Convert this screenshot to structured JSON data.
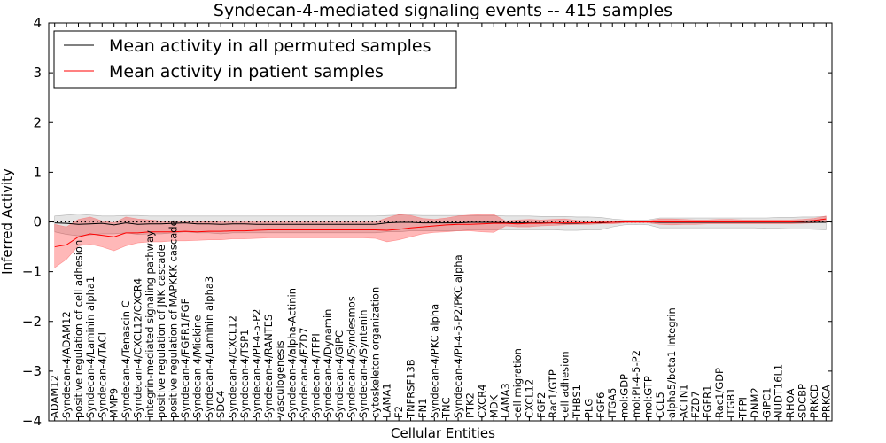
{
  "chart_data": {
    "type": "line",
    "title": "Syndecan-4-mediated signaling events -- 415 samples",
    "xlabel": "Cellular Entities",
    "ylabel": "Inferred Activity",
    "ylim": [
      -4,
      4
    ],
    "yticks": [
      "4",
      "3",
      "2",
      "1",
      "0",
      "−1",
      "−2",
      "−3",
      "−4"
    ],
    "legend_position": "top-left",
    "categories": [
      "ADAM12",
      "Syndecan-4/ADAM12",
      "positive regulation of cell adhesion",
      "Syndecan-4/Laminin alpha1",
      "Syndecan-4/TACI",
      "MMP9",
      "Syndecan-4/Tenascin C",
      "Syndecan-4/CXCL12/CXCR4",
      "integrin-mediated signaling pathway",
      "positive regulation of JNK cascade",
      "positive regulation of MAPKKK cascade",
      "Syndecan-4/FGFR1/FGF",
      "Syndecan-4/Midkine",
      "Syndecan-4/Laminin alpha3",
      "SDC4",
      "Syndecan-4/CXCL12",
      "Syndecan-4/TSP1",
      "Syndecan-4/PI-4-5-P2",
      "Syndecan-4/RANTES",
      "vasculogenesis",
      "Syndecan-4/alpha-Actinin",
      "Syndecan-4/FZD7",
      "Syndecan-4/TFPI",
      "Syndecan-4/Dynamin",
      "Syndecan-4/GIPC",
      "Syndecan-4/Syndesmos",
      "Syndecan-4/Syntenin",
      "cytoskeleton organization",
      "LAMA1",
      "F2",
      "TNFRSF13B",
      "FN1",
      "Syndecan-4/PKC alpha",
      "TNC",
      "Syndecan-4/PI-4-5-P2/PKC alpha",
      "PTK2",
      "CXCR4",
      "MDK",
      "LAMA3",
      "cell migration",
      "CXCL12",
      "FGF2",
      "Rac1/GTP",
      "cell adhesion",
      "THBS1",
      "PLG",
      "FGF6",
      "ITGA5",
      "mol:GDP",
      "mol:PI-4-5-P2",
      "mol:GTP",
      "CCL5",
      "alpha5/beta1 Integrin",
      "ACTN1",
      "FZD7",
      "FGFR1",
      "Rac1/GDP",
      "ITGB1",
      "TFPI",
      "DNM2",
      "GIPC1",
      "NUDT16L1",
      "RHOA",
      "SDCBP",
      "PRKCD",
      "PRKCA"
    ],
    "series": [
      {
        "name": "Mean activity in all permuted samples",
        "color": "#000000",
        "values": [
          -0.02,
          -0.03,
          -0.05,
          -0.04,
          -0.03,
          -0.06,
          -0.02,
          -0.05,
          -0.04,
          -0.04,
          -0.03,
          -0.02,
          -0.04,
          -0.04,
          -0.05,
          -0.04,
          -0.04,
          -0.05,
          -0.05,
          -0.05,
          -0.05,
          -0.05,
          -0.05,
          -0.05,
          -0.05,
          -0.05,
          -0.05,
          -0.05,
          -0.02,
          -0.01,
          -0.01,
          -0.02,
          -0.02,
          -0.02,
          -0.02,
          -0.01,
          -0.01,
          -0.01,
          -0.02,
          -0.02,
          -0.02,
          -0.02,
          -0.02,
          -0.03,
          -0.03,
          -0.02,
          -0.02,
          -0.01,
          0.0,
          0.0,
          0.0,
          -0.01,
          -0.01,
          -0.01,
          -0.01,
          -0.01,
          -0.01,
          -0.01,
          -0.01,
          -0.01,
          -0.01,
          -0.01,
          -0.01,
          -0.01,
          -0.01,
          -0.01
        ],
        "lower": [
          -0.2,
          -0.25,
          -0.28,
          -0.26,
          -0.24,
          -0.24,
          -0.22,
          -0.25,
          -0.24,
          -0.24,
          -0.22,
          -0.2,
          -0.22,
          -0.22,
          -0.24,
          -0.22,
          -0.22,
          -0.22,
          -0.22,
          -0.22,
          -0.22,
          -0.22,
          -0.22,
          -0.22,
          -0.22,
          -0.22,
          -0.22,
          -0.22,
          -0.2,
          -0.2,
          -0.18,
          -0.18,
          -0.18,
          -0.18,
          -0.18,
          -0.16,
          -0.16,
          -0.16,
          -0.16,
          -0.16,
          -0.16,
          -0.16,
          -0.16,
          -0.17,
          -0.17,
          -0.16,
          -0.16,
          -0.1,
          -0.06,
          -0.05,
          -0.06,
          -0.12,
          -0.12,
          -0.12,
          -0.12,
          -0.12,
          -0.12,
          -0.12,
          -0.12,
          -0.12,
          -0.13,
          -0.13,
          -0.14,
          -0.14,
          -0.15,
          -0.16
        ],
        "upper": [
          0.12,
          0.14,
          0.16,
          0.14,
          0.12,
          0.12,
          0.13,
          0.13,
          0.12,
          0.12,
          0.12,
          0.12,
          0.12,
          0.12,
          0.12,
          0.12,
          0.12,
          0.12,
          0.12,
          0.12,
          0.12,
          0.12,
          0.12,
          0.12,
          0.12,
          0.12,
          0.12,
          0.12,
          0.13,
          0.14,
          0.14,
          0.13,
          0.13,
          0.13,
          0.13,
          0.13,
          0.13,
          0.13,
          0.12,
          0.12,
          0.12,
          0.11,
          0.11,
          0.11,
          0.1,
          0.1,
          0.09,
          0.06,
          0.04,
          0.04,
          0.04,
          0.08,
          0.08,
          0.08,
          0.08,
          0.08,
          0.08,
          0.08,
          0.08,
          0.08,
          0.08,
          0.09,
          0.09,
          0.1,
          0.1,
          0.11
        ]
      },
      {
        "name": "Mean activity in patient samples",
        "color": "#ff0000",
        "values": [
          -0.5,
          -0.46,
          -0.3,
          -0.24,
          -0.27,
          -0.3,
          -0.22,
          -0.22,
          -0.2,
          -0.2,
          -0.2,
          -0.19,
          -0.2,
          -0.19,
          -0.19,
          -0.18,
          -0.18,
          -0.17,
          -0.16,
          -0.16,
          -0.16,
          -0.16,
          -0.16,
          -0.16,
          -0.16,
          -0.16,
          -0.16,
          -0.16,
          -0.17,
          -0.15,
          -0.12,
          -0.1,
          -0.08,
          -0.06,
          -0.05,
          -0.05,
          -0.04,
          -0.03,
          -0.03,
          -0.04,
          -0.03,
          -0.03,
          -0.02,
          -0.02,
          -0.02,
          -0.02,
          -0.01,
          -0.01,
          0.0,
          0.0,
          0.0,
          0.0,
          0.0,
          0.0,
          0.0,
          0.0,
          0.0,
          0.0,
          0.0,
          0.0,
          0.0,
          0.0,
          0.0,
          0.01,
          0.03,
          0.06
        ],
        "lower": [
          -0.92,
          -0.75,
          -0.48,
          -0.45,
          -0.5,
          -0.58,
          -0.48,
          -0.42,
          -0.4,
          -0.4,
          -0.38,
          -0.38,
          -0.37,
          -0.36,
          -0.36,
          -0.34,
          -0.34,
          -0.33,
          -0.32,
          -0.32,
          -0.32,
          -0.32,
          -0.32,
          -0.32,
          -0.32,
          -0.32,
          -0.32,
          -0.33,
          -0.4,
          -0.36,
          -0.3,
          -0.24,
          -0.21,
          -0.2,
          -0.18,
          -0.18,
          -0.2,
          -0.21,
          -0.08,
          -0.1,
          -0.1,
          -0.08,
          -0.07,
          -0.06,
          -0.05,
          -0.05,
          -0.04,
          -0.04,
          -0.02,
          -0.02,
          -0.02,
          -0.05,
          -0.06,
          -0.05,
          -0.05,
          -0.04,
          -0.04,
          -0.04,
          -0.04,
          -0.04,
          -0.04,
          -0.04,
          -0.04,
          -0.03,
          -0.02,
          0.0
        ],
        "upper": [
          -0.05,
          -0.1,
          0.05,
          0.1,
          0.02,
          -0.02,
          0.1,
          0.06,
          0.04,
          0.02,
          0.02,
          0.02,
          0.01,
          0.01,
          0.0,
          0.0,
          0.0,
          0.0,
          0.0,
          0.0,
          0.0,
          0.0,
          0.0,
          0.0,
          0.0,
          0.0,
          0.0,
          0.0,
          0.08,
          0.15,
          0.13,
          0.07,
          0.05,
          0.08,
          0.12,
          0.14,
          0.15,
          0.15,
          0.02,
          0.04,
          0.05,
          0.04,
          0.05,
          0.06,
          0.03,
          0.02,
          0.02,
          0.02,
          0.02,
          0.02,
          0.02,
          0.06,
          0.06,
          0.05,
          0.04,
          0.04,
          0.05,
          0.05,
          0.04,
          0.04,
          0.04,
          0.04,
          0.04,
          0.05,
          0.07,
          0.12
        ]
      }
    ]
  }
}
